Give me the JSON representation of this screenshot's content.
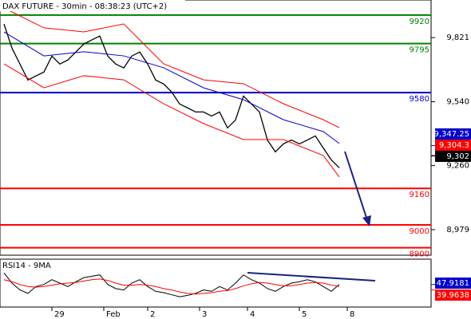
{
  "chart_data": {
    "type": "line",
    "title": "DAX FUTURE - 30min - 08:38:23 (UTC+2)",
    "xlim": [
      0,
      108
    ],
    "xticks": [
      {
        "value": 13,
        "label": "29"
      },
      {
        "value": 26,
        "label": "Feb"
      },
      {
        "value": 37,
        "label": "2"
      },
      {
        "value": 50,
        "label": "3"
      },
      {
        "value": 62,
        "label": "4"
      },
      {
        "value": 75,
        "label": "5"
      },
      {
        "value": 87,
        "label": "8"
      }
    ],
    "ylim": [
      8867,
      9986
    ],
    "yticks": [
      {
        "value": 9821,
        "label": "9,821"
      },
      {
        "value": 9540,
        "label": "9,540"
      },
      {
        "value": 9260,
        "label": "9,260"
      },
      {
        "value": 8979,
        "label": "8,979"
      }
    ],
    "series": [
      {
        "color": "#000000",
        "x": [
          1,
          3,
          5,
          7,
          9,
          11,
          13,
          15,
          17,
          19,
          21,
          23,
          25,
          27,
          29,
          31,
          33,
          35,
          37,
          39,
          41,
          43,
          45,
          47,
          49,
          51,
          53,
          55,
          57,
          59,
          61,
          63,
          65,
          67,
          69,
          71,
          73,
          75,
          77,
          79,
          81,
          83,
          85
        ],
        "values": [
          9881,
          9775,
          9705,
          9635,
          9653,
          9670,
          9740,
          9705,
          9723,
          9758,
          9793,
          9811,
          9828,
          9740,
          9705,
          9688,
          9740,
          9758,
          9705,
          9635,
          9618,
          9583,
          9530,
          9513,
          9495,
          9495,
          9477,
          9495,
          9425,
          9460,
          9565,
          9530,
          9495,
          9372,
          9320,
          9355,
          9372,
          9355,
          9372,
          9390,
          9337,
          9285,
          9250
        ]
      },
      {
        "color": "#ff0000",
        "x": [
          1,
          11,
          21,
          31,
          41,
          51,
          61,
          71,
          81,
          85
        ],
        "values": [
          9951,
          9864,
          9846,
          9881,
          9706,
          9636,
          9619,
          9531,
          9461,
          9426
        ]
      },
      {
        "color": "#ff0000",
        "x": [
          1,
          11,
          21,
          31,
          41,
          51,
          61,
          71,
          81,
          85
        ],
        "values": [
          9706,
          9601,
          9654,
          9636,
          9531,
          9444,
          9374,
          9374,
          9304,
          9210
        ]
      },
      {
        "color": "#0000cc",
        "x": [
          1,
          11,
          21,
          31,
          41,
          51,
          61,
          71,
          81,
          85
        ],
        "values": [
          9846,
          9741,
          9759,
          9741,
          9689,
          9601,
          9549,
          9461,
          9409,
          9357
        ]
      }
    ],
    "levels": [
      {
        "value": 9920,
        "label": "9920",
        "color": "#008000"
      },
      {
        "value": 9795,
        "label": "9795",
        "color": "#008000"
      },
      {
        "value": 9580,
        "label": "9580",
        "color": "#0000cc"
      },
      {
        "value": 9160,
        "label": "9160",
        "color": "#ff0000"
      },
      {
        "value": 9000,
        "label": "9000",
        "color": "#ff0000"
      },
      {
        "value": 8900,
        "label": "8900",
        "color": "#ff0000"
      }
    ],
    "price_tags": [
      {
        "value": 9347.25,
        "label": "9,347.25",
        "color": "#0000cc"
      },
      {
        "value": 9304.3,
        "label": "9,304.3",
        "color": "#ff0000"
      },
      {
        "value": 9302,
        "label": "9,302",
        "color": "#000000"
      }
    ],
    "rsi": {
      "title": "RSI14 - 9MA",
      "ylim": [
        15,
        85
      ],
      "series": [
        {
          "color": "#000000",
          "values": [
            65,
            50,
            40,
            35,
            45,
            48,
            55,
            50,
            45,
            52,
            58,
            60,
            62,
            48,
            42,
            40,
            50,
            55,
            45,
            38,
            36,
            33,
            30,
            32,
            35,
            40,
            38,
            45,
            40,
            50,
            62,
            55,
            50,
            42,
            38,
            45,
            50,
            52,
            55,
            52,
            45,
            38,
            48
          ]
        },
        {
          "color": "#ff0000",
          "values": [
            55,
            52,
            48,
            45,
            44,
            45,
            47,
            49,
            50,
            51,
            53,
            55,
            56,
            54,
            50,
            47,
            47,
            48,
            47,
            45,
            42,
            40,
            37,
            35,
            34,
            35,
            36,
            38,
            39,
            42,
            46,
            49,
            51,
            50,
            48,
            46,
            46,
            48,
            50,
            51,
            50,
            47,
            45
          ]
        }
      ],
      "tags": [
        {
          "value": 47.9181,
          "label": "47.9181",
          "color": "#0000cc"
        },
        {
          "value": 39.9638,
          "label": "39.9638",
          "color": "#ff0000"
        }
      ]
    }
  }
}
